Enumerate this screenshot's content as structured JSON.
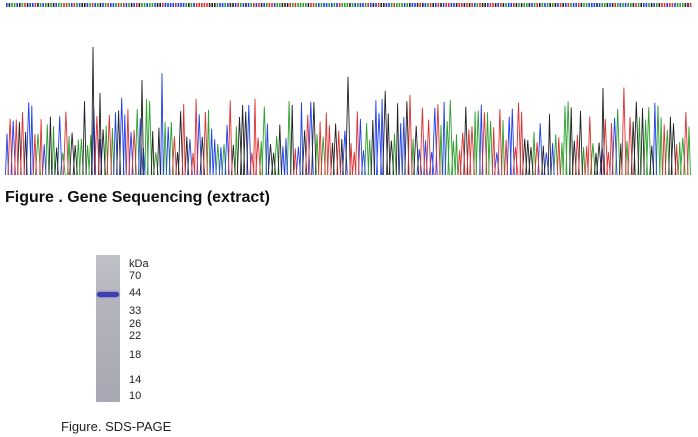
{
  "gene_figure": {
    "caption": "Figure . Gene Sequencing (extract)",
    "base_colors": {
      "A": "#2ca02c",
      "C": "#1f3ff0",
      "G": "#222222",
      "T": "#e03030"
    }
  },
  "sds_figure": {
    "caption": "Figure. SDS-PAGE",
    "unit_label": "kDa",
    "markers": [
      "70",
      "44",
      "33",
      "26",
      "22",
      "18",
      "14",
      "10"
    ],
    "band_color": "#3f3fb0"
  }
}
